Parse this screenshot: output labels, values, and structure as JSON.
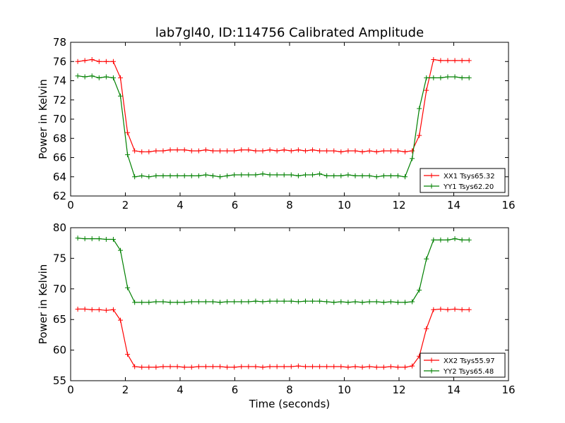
{
  "title": "lab7gl40, ID:114756 Calibrated Amplitude",
  "chart_data": [
    {
      "type": "line",
      "ylabel": "Power in Kelvin",
      "xlabel": "",
      "xlim": [
        0,
        16
      ],
      "ylim": [
        62,
        78
      ],
      "xticks": [
        0,
        2,
        4,
        6,
        8,
        10,
        12,
        14,
        16
      ],
      "yticks": [
        62,
        64,
        66,
        68,
        70,
        72,
        74,
        76,
        78
      ],
      "grid": false,
      "legend_position": "lower-right",
      "x": [
        0.26,
        0.52,
        0.78,
        1.04,
        1.3,
        1.56,
        1.82,
        2.08,
        2.34,
        2.6,
        2.86,
        3.12,
        3.38,
        3.64,
        3.9,
        4.16,
        4.42,
        4.68,
        4.94,
        5.2,
        5.46,
        5.72,
        5.98,
        6.24,
        6.5,
        6.76,
        7.02,
        7.28,
        7.54,
        7.8,
        8.06,
        8.32,
        8.58,
        8.84,
        9.1,
        9.36,
        9.62,
        9.88,
        10.14,
        10.4,
        10.66,
        10.92,
        11.18,
        11.44,
        11.7,
        11.96,
        12.22,
        12.48,
        12.74,
        13.0,
        13.26,
        13.52,
        13.78,
        14.04,
        14.3,
        14.56
      ],
      "series": [
        {
          "name": "XX1 Tsys65.32",
          "color": "#ff0000",
          "values": [
            76.0,
            76.1,
            76.2,
            76.0,
            76.0,
            76.0,
            74.3,
            68.6,
            66.7,
            66.6,
            66.6,
            66.7,
            66.7,
            66.8,
            66.8,
            66.8,
            66.7,
            66.7,
            66.8,
            66.7,
            66.7,
            66.7,
            66.7,
            66.8,
            66.8,
            66.7,
            66.7,
            66.8,
            66.7,
            66.8,
            66.7,
            66.8,
            66.7,
            66.8,
            66.7,
            66.7,
            66.7,
            66.6,
            66.7,
            66.7,
            66.6,
            66.7,
            66.6,
            66.7,
            66.7,
            66.7,
            66.6,
            66.7,
            68.3,
            73.0,
            76.2,
            76.1,
            76.1,
            76.1,
            76.1,
            76.1
          ]
        },
        {
          "name": "YY1 Tsys62.20",
          "color": "#008000",
          "values": [
            74.5,
            74.4,
            74.5,
            74.3,
            74.4,
            74.3,
            72.4,
            66.3,
            64.0,
            64.1,
            64.0,
            64.1,
            64.1,
            64.1,
            64.1,
            64.1,
            64.1,
            64.1,
            64.2,
            64.1,
            64.0,
            64.1,
            64.2,
            64.2,
            64.2,
            64.2,
            64.3,
            64.2,
            64.2,
            64.2,
            64.2,
            64.1,
            64.2,
            64.2,
            64.3,
            64.1,
            64.1,
            64.1,
            64.2,
            64.1,
            64.1,
            64.1,
            64.0,
            64.1,
            64.1,
            64.1,
            64.0,
            65.9,
            71.1,
            74.3,
            74.3,
            74.3,
            74.4,
            74.4,
            74.3,
            74.3
          ]
        }
      ]
    },
    {
      "type": "line",
      "ylabel": "Power in Kelvin",
      "xlabel": "Time (seconds)",
      "xlim": [
        0,
        16
      ],
      "ylim": [
        55,
        80
      ],
      "xticks": [
        0,
        2,
        4,
        6,
        8,
        10,
        12,
        14,
        16
      ],
      "yticks": [
        55,
        60,
        65,
        70,
        75,
        80
      ],
      "grid": false,
      "legend_position": "lower-right",
      "x": [
        0.26,
        0.52,
        0.78,
        1.04,
        1.3,
        1.56,
        1.82,
        2.08,
        2.34,
        2.6,
        2.86,
        3.12,
        3.38,
        3.64,
        3.9,
        4.16,
        4.42,
        4.68,
        4.94,
        5.2,
        5.46,
        5.72,
        5.98,
        6.24,
        6.5,
        6.76,
        7.02,
        7.28,
        7.54,
        7.8,
        8.06,
        8.32,
        8.58,
        8.84,
        9.1,
        9.36,
        9.62,
        9.88,
        10.14,
        10.4,
        10.66,
        10.92,
        11.18,
        11.44,
        11.7,
        11.96,
        12.22,
        12.48,
        12.74,
        13.0,
        13.26,
        13.52,
        13.78,
        14.04,
        14.3,
        14.56
      ],
      "series": [
        {
          "name": "XX2 Tsys55.97",
          "color": "#ff0000",
          "values": [
            66.7,
            66.7,
            66.6,
            66.6,
            66.5,
            66.6,
            64.9,
            59.3,
            57.3,
            57.2,
            57.2,
            57.2,
            57.3,
            57.3,
            57.3,
            57.2,
            57.2,
            57.3,
            57.3,
            57.3,
            57.3,
            57.2,
            57.2,
            57.3,
            57.3,
            57.3,
            57.2,
            57.3,
            57.3,
            57.3,
            57.3,
            57.4,
            57.3,
            57.3,
            57.3,
            57.3,
            57.3,
            57.3,
            57.2,
            57.3,
            57.2,
            57.3,
            57.2,
            57.2,
            57.3,
            57.2,
            57.2,
            57.4,
            59.0,
            63.5,
            66.6,
            66.7,
            66.6,
            66.7,
            66.6,
            66.6
          ]
        },
        {
          "name": "YY2 Tsys65.48",
          "color": "#008000",
          "values": [
            78.3,
            78.2,
            78.2,
            78.2,
            78.1,
            78.1,
            76.3,
            70.2,
            67.8,
            67.8,
            67.8,
            67.9,
            67.9,
            67.8,
            67.8,
            67.8,
            67.9,
            67.9,
            67.9,
            67.9,
            67.8,
            67.9,
            67.9,
            67.9,
            67.9,
            68.0,
            67.9,
            68.0,
            68.0,
            68.0,
            68.0,
            67.9,
            68.0,
            68.0,
            68.0,
            67.9,
            67.8,
            67.9,
            67.8,
            67.9,
            67.8,
            67.9,
            67.9,
            67.8,
            67.9,
            67.8,
            67.8,
            67.9,
            69.8,
            74.9,
            78.0,
            78.0,
            78.0,
            78.2,
            78.0,
            78.0
          ]
        }
      ]
    }
  ]
}
